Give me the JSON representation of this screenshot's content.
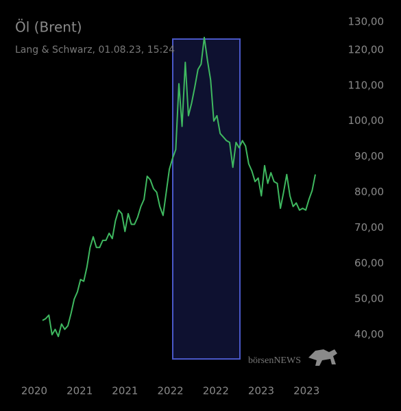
{
  "chart_data": {
    "type": "line",
    "title": "Öl (Brent)",
    "subtitle": "Lang & Schwarz, 01.08.23, 15:24",
    "watermark": "börsenNEWS",
    "color": "#3fb960",
    "xtick_labels": [
      "2020",
      "2021",
      "2021",
      "2022",
      "2022",
      "2023",
      "2023"
    ],
    "values": [
      44,
      44.5,
      45.5,
      40,
      41.5,
      39.5,
      43,
      41.5,
      42.5,
      46,
      50,
      52,
      55.5,
      55,
      59,
      64.5,
      67.5,
      64.5,
      64.5,
      66.5,
      66.5,
      68.5,
      67,
      72,
      75,
      74,
      69,
      74,
      71,
      71,
      73,
      76,
      78,
      84.5,
      83.5,
      81,
      80,
      76,
      73.5,
      80,
      86.5,
      89.5,
      92,
      110.5,
      98.5,
      116.5,
      101.5,
      105,
      109.5,
      114.5,
      116,
      123.5,
      117,
      111.5,
      100,
      101.5,
      96.5,
      95.5,
      94.5,
      94,
      87,
      94,
      92.5,
      94.5,
      93,
      88,
      86,
      83,
      84,
      79,
      87.5,
      82.5,
      85.5,
      83,
      82.5,
      75.5,
      80,
      85,
      79,
      76,
      77,
      75,
      75.5,
      75,
      78,
      80.5,
      85
    ],
    "ylim": [
      33,
      134
    ],
    "yticks": [
      {
        "value": 40,
        "label": "40,00"
      },
      {
        "value": 50,
        "label": "50,00"
      },
      {
        "value": 60,
        "label": "60,00"
      },
      {
        "value": 70,
        "label": "70,00"
      },
      {
        "value": 80,
        "label": "80,00"
      },
      {
        "value": 90,
        "label": "90,00"
      },
      {
        "value": 100,
        "label": "100,00"
      },
      {
        "value": 110,
        "label": "110,00"
      },
      {
        "value": 120,
        "label": "120,00"
      },
      {
        "value": 130,
        "label": "130,00"
      }
    ],
    "grid": false
  }
}
